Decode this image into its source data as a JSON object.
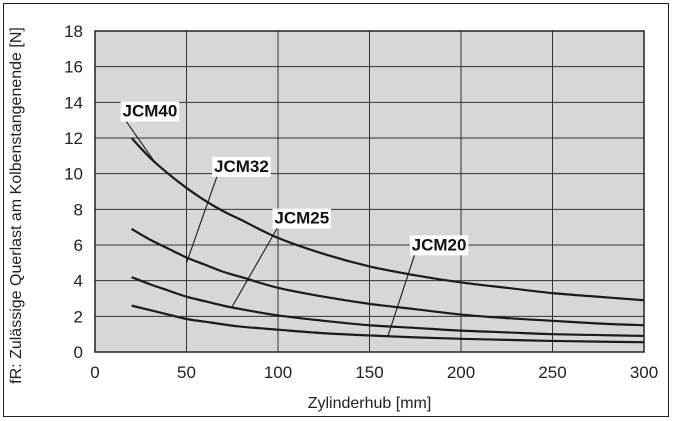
{
  "chart_data": {
    "type": "line",
    "title": "",
    "xlabel": "Zylinderhub [mm]",
    "ylabel": "fR: Zulässige Querlast am Kolbenstangenende [N]",
    "xlim": [
      0,
      300
    ],
    "ylim": [
      0,
      18
    ],
    "xticks": [
      0,
      50,
      100,
      150,
      200,
      250,
      300
    ],
    "yticks": [
      0,
      2,
      4,
      6,
      8,
      10,
      12,
      14,
      16,
      18
    ],
    "grid": true,
    "plot_background": "#d7d7d7",
    "line_color": "#1a1a1a",
    "series": [
      {
        "name": "JCM40",
        "x": [
          20,
          30,
          40,
          50,
          60,
          70,
          80,
          100,
          125,
          150,
          175,
          200,
          225,
          250,
          275,
          300
        ],
        "y": [
          12.0,
          10.9,
          10.0,
          9.2,
          8.5,
          7.9,
          7.4,
          6.4,
          5.5,
          4.8,
          4.3,
          3.9,
          3.6,
          3.3,
          3.1,
          2.9
        ]
      },
      {
        "name": "JCM32",
        "x": [
          20,
          30,
          40,
          50,
          60,
          70,
          80,
          100,
          125,
          150,
          175,
          200,
          225,
          250,
          275,
          300
        ],
        "y": [
          6.9,
          6.3,
          5.8,
          5.3,
          4.9,
          4.5,
          4.2,
          3.6,
          3.1,
          2.7,
          2.4,
          2.1,
          1.9,
          1.75,
          1.6,
          1.5
        ]
      },
      {
        "name": "JCM25",
        "x": [
          20,
          30,
          40,
          50,
          60,
          70,
          80,
          100,
          125,
          150,
          175,
          200,
          225,
          250,
          275,
          300
        ],
        "y": [
          4.2,
          3.8,
          3.45,
          3.1,
          2.85,
          2.6,
          2.4,
          2.05,
          1.75,
          1.5,
          1.35,
          1.2,
          1.1,
          1.0,
          0.95,
          0.9
        ]
      },
      {
        "name": "JCM20",
        "x": [
          20,
          30,
          40,
          50,
          60,
          70,
          80,
          100,
          125,
          150,
          175,
          200,
          225,
          250,
          275,
          300
        ],
        "y": [
          2.6,
          2.35,
          2.1,
          1.85,
          1.7,
          1.55,
          1.42,
          1.25,
          1.05,
          0.93,
          0.82,
          0.74,
          0.68,
          0.62,
          0.58,
          0.55
        ]
      }
    ],
    "annotations": [
      {
        "series": "JCM40",
        "text": "JCM40",
        "label_at": [
          30,
          13.2
        ],
        "leader_to": [
          33,
          10.6
        ]
      },
      {
        "series": "JCM32",
        "text": "JCM32",
        "label_at": [
          80,
          10.1
        ],
        "leader_to": [
          50,
          5.0
        ]
      },
      {
        "series": "JCM25",
        "text": "JCM25",
        "label_at": [
          113,
          7.2
        ],
        "leader_to": [
          75,
          2.55
        ]
      },
      {
        "series": "JCM20",
        "text": "JCM20",
        "label_at": [
          188,
          5.7
        ],
        "leader_to": [
          160,
          0.88
        ]
      }
    ]
  }
}
